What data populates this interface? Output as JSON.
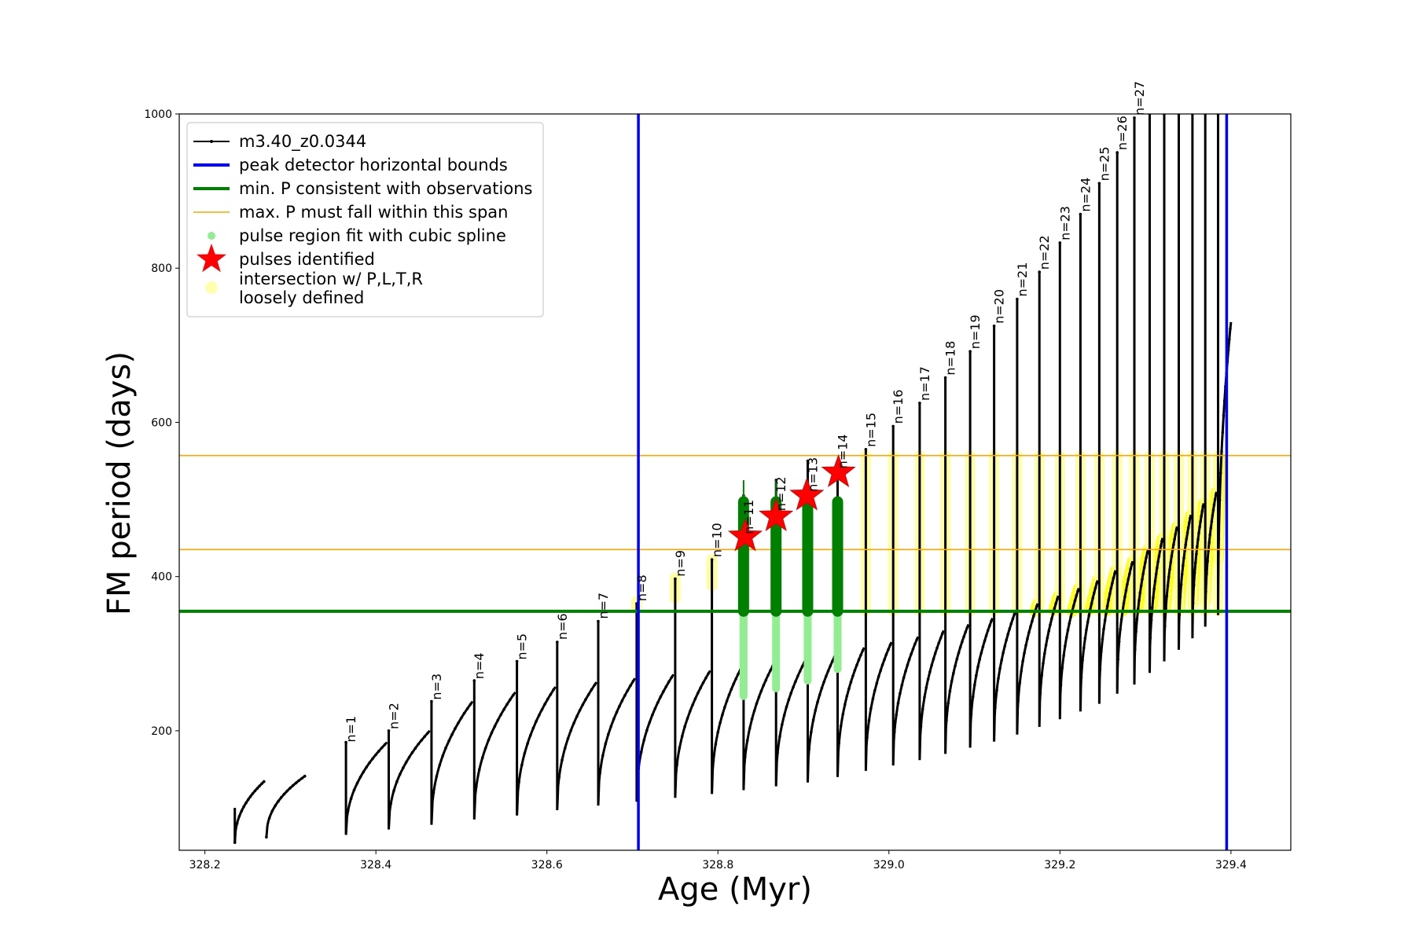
{
  "chart_data": {
    "type": "line",
    "title": "",
    "xlabel": "Age (Myr)",
    "ylabel": "FM period (days)",
    "xlim": [
      328.17,
      329.47
    ],
    "ylim": [
      45,
      1000
    ],
    "xticks": [
      328.2,
      328.4,
      328.6,
      328.8,
      329.0,
      329.2,
      329.4
    ],
    "xtick_labels": [
      "328.2",
      "328.4",
      "328.6",
      "328.8",
      "329.0",
      "329.2",
      "329.4"
    ],
    "yticks": [
      200,
      400,
      600,
      800,
      1000
    ],
    "ytick_labels": [
      "200",
      "400",
      "600",
      "800",
      "1000"
    ],
    "grid": false,
    "legend_position": "upper-left",
    "legend": [
      {
        "label": "m3.40_z0.0344",
        "kind": "line-marker",
        "color": "#000000"
      },
      {
        "label": "peak detector horizontal bounds",
        "kind": "line",
        "color": "#0000ff"
      },
      {
        "label": "min. P consistent with observations",
        "kind": "line",
        "color": "#008000"
      },
      {
        "label": "max. P must fall within this span",
        "kind": "line",
        "color": "#ffa500"
      },
      {
        "label": "pulse region fit with cubic spline",
        "kind": "dot",
        "color": "#90ee90"
      },
      {
        "label": "pulses identified",
        "kind": "star",
        "color": "#ff0000"
      },
      {
        "label": "intersection w/ P,L,T,R",
        "label2": "loosely defined",
        "kind": "circle",
        "color": "#ffff99"
      }
    ],
    "series_name": "m3.40_z0.0344",
    "pulses": [
      {
        "n": "n=1",
        "start_age": 328.365,
        "start_P": 65,
        "peak_P": 185,
        "label_P": 185
      },
      {
        "n": "n=2",
        "start_age": 328.415,
        "start_P": 72,
        "peak_P": 200,
        "label_P": 202
      },
      {
        "n": "n=3",
        "start_age": 328.465,
        "start_P": 78,
        "peak_P": 238,
        "label_P": 240
      },
      {
        "n": "n=4",
        "start_age": 328.515,
        "start_P": 85,
        "peak_P": 265,
        "label_P": 267
      },
      {
        "n": "n=5",
        "start_age": 328.565,
        "start_P": 90,
        "peak_P": 290,
        "label_P": 292
      },
      {
        "n": "n=6",
        "start_age": 328.612,
        "start_P": 97,
        "peak_P": 315,
        "label_P": 318
      },
      {
        "n": "n=7",
        "start_age": 328.66,
        "start_P": 103,
        "peak_P": 342,
        "label_P": 345
      },
      {
        "n": "n=8",
        "start_age": 328.705,
        "start_P": 108,
        "peak_P": 365,
        "label_P": 368
      },
      {
        "n": "n=9",
        "start_age": 328.75,
        "start_P": 113,
        "peak_P": 397,
        "label_P": 400
      },
      {
        "n": "n=10",
        "start_age": 328.793,
        "start_P": 118,
        "peak_P": 422,
        "label_P": 425
      },
      {
        "n": "n=11",
        "start_age": 328.83,
        "start_P": 123,
        "peak_P": 505,
        "label_P": 455
      },
      {
        "n": "n=12",
        "start_age": 328.868,
        "start_P": 128,
        "peak_P": 525,
        "label_P": 485
      },
      {
        "n": "n=13",
        "start_age": 328.905,
        "start_P": 133,
        "peak_P": 550,
        "label_P": 510
      },
      {
        "n": "n=14",
        "start_age": 328.94,
        "start_P": 140,
        "peak_P": 545,
        "label_P": 540
      },
      {
        "n": "n=15",
        "start_age": 328.973,
        "start_P": 148,
        "peak_P": 565,
        "label_P": 568
      },
      {
        "n": "n=16",
        "start_age": 329.005,
        "start_P": 155,
        "peak_P": 595,
        "label_P": 598
      },
      {
        "n": "n=17",
        "start_age": 329.036,
        "start_P": 162,
        "peak_P": 625,
        "label_P": 628
      },
      {
        "n": "n=18",
        "start_age": 329.066,
        "start_P": 170,
        "peak_P": 658,
        "label_P": 661
      },
      {
        "n": "n=19",
        "start_age": 329.095,
        "start_P": 178,
        "peak_P": 692,
        "label_P": 695
      },
      {
        "n": "n=20",
        "start_age": 329.123,
        "start_P": 186,
        "peak_P": 725,
        "label_P": 728
      },
      {
        "n": "n=21",
        "start_age": 329.15,
        "start_P": 195,
        "peak_P": 760,
        "label_P": 763
      },
      {
        "n": "n=22",
        "start_age": 329.176,
        "start_P": 205,
        "peak_P": 795,
        "label_P": 798
      },
      {
        "n": "n=23",
        "start_age": 329.2,
        "start_P": 215,
        "peak_P": 833,
        "label_P": 836
      },
      {
        "n": "n=24",
        "start_age": 329.224,
        "start_P": 225,
        "peak_P": 870,
        "label_P": 873
      },
      {
        "n": "n=25",
        "start_age": 329.246,
        "start_P": 235,
        "peak_P": 910,
        "label_P": 913
      },
      {
        "n": "n=26",
        "start_age": 329.267,
        "start_P": 248,
        "peak_P": 950,
        "label_P": 953
      },
      {
        "n": "n=27",
        "start_age": 329.287,
        "start_P": 260,
        "peak_P": 995,
        "label_P": 998
      },
      {
        "n": "",
        "start_age": 329.305,
        "start_P": 275,
        "peak_P": 1000,
        "label_P": 0
      },
      {
        "n": "",
        "start_age": 329.322,
        "start_P": 290,
        "peak_P": 1000,
        "label_P": 0
      },
      {
        "n": "",
        "start_age": 329.339,
        "start_P": 305,
        "peak_P": 1000,
        "label_P": 0
      },
      {
        "n": "",
        "start_age": 329.355,
        "start_P": 320,
        "peak_P": 1000,
        "label_P": 0
      },
      {
        "n": "",
        "start_age": 329.37,
        "start_P": 335,
        "peak_P": 1000,
        "label_P": 0
      },
      {
        "n": "",
        "start_age": 329.385,
        "start_P": 350,
        "peak_P": 1000,
        "label_P": 0
      }
    ],
    "track_start": {
      "age": 328.235,
      "P": 100
    },
    "track_end": {
      "age": 329.4,
      "P": 730
    },
    "pre_pulse_segments": [
      {
        "start_age": 328.235,
        "start_P": 55,
        "end_age": 328.27,
        "end_P": 135
      },
      {
        "start_age": 328.272,
        "start_P": 62,
        "end_age": 328.318,
        "end_P": 142
      }
    ],
    "vertical_lines": [
      {
        "name": "peak detector horizontal bounds (left)",
        "x": 328.707,
        "color": "#0000ff"
      },
      {
        "name": "peak detector horizontal bounds (right)",
        "x": 329.395,
        "color": "#0000ff"
      }
    ],
    "horizontal_lines": [
      {
        "name": "min. P consistent with observations",
        "y": 355,
        "color": "#008000"
      },
      {
        "name": "max. P span lower",
        "y": 435,
        "color": "#ffa500"
      },
      {
        "name": "max. P span upper",
        "y": 557,
        "color": "#ffa500"
      }
    ],
    "spline_regions": [
      {
        "pulse": "n=11",
        "age": 328.83,
        "P_min": 245,
        "P_max": 525,
        "dark_min": 355,
        "dark_max": 497
      },
      {
        "pulse": "n=12",
        "age": 328.868,
        "P_min": 255,
        "P_max": 525,
        "dark_min": 355,
        "dark_max": 497
      },
      {
        "pulse": "n=13",
        "age": 328.905,
        "P_min": 265,
        "P_max": 500,
        "dark_min": 355,
        "dark_max": 497
      },
      {
        "pulse": "n=14",
        "age": 328.94,
        "P_min": 280,
        "P_max": 500,
        "dark_min": 355,
        "dark_max": 497
      }
    ],
    "stars": [
      {
        "age": 328.832,
        "P": 452
      },
      {
        "age": 328.868,
        "P": 478
      },
      {
        "age": 328.904,
        "P": 505
      },
      {
        "age": 328.941,
        "P": 535
      }
    ]
  }
}
